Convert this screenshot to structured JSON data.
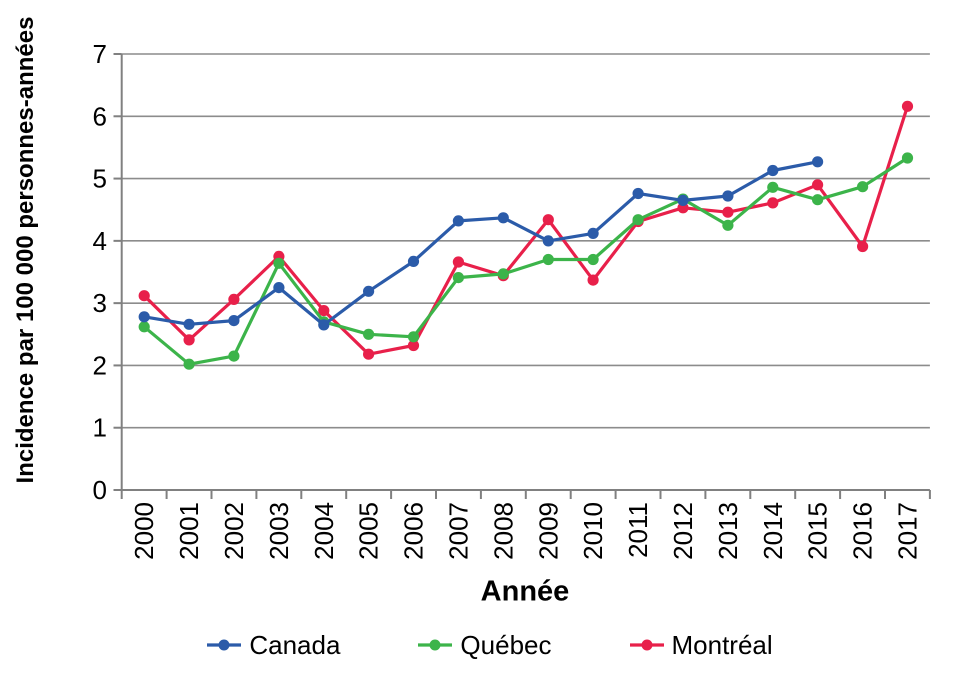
{
  "figure": {
    "background": "#ffffff"
  },
  "chart_data": {
    "type": "line",
    "title": "",
    "xlabel": "Année",
    "ylabel": "Incidence par 100 000 personnes-années",
    "x_categories": [
      "2000",
      "2001",
      "2002",
      "2003",
      "2004",
      "2005",
      "2006",
      "2007",
      "2008",
      "2009",
      "2010",
      "2011",
      "2012",
      "2013",
      "2014",
      "2015",
      "2016",
      "2017"
    ],
    "y_tick_labels": [
      "0",
      "1",
      "2",
      "3",
      "4",
      "5",
      "6",
      "7"
    ],
    "ylim": [
      0,
      7
    ],
    "grid": "horizontal",
    "legend_position": "bottom",
    "axis_color": "#808080",
    "grid_color": "#8c8c8c",
    "text_color": "#000000",
    "series": [
      {
        "name": "Canada",
        "color": "#2b5ba9",
        "values": [
          2.78,
          2.66,
          2.72,
          3.25,
          2.65,
          3.19,
          3.67,
          4.32,
          4.37,
          4.0,
          4.12,
          4.76,
          4.65,
          4.72,
          5.13,
          5.27,
          null,
          null
        ]
      },
      {
        "name": "Québec",
        "color": "#3cb44a",
        "values": [
          2.62,
          2.02,
          2.15,
          3.64,
          2.7,
          2.5,
          2.46,
          3.41,
          3.47,
          3.7,
          3.7,
          4.34,
          4.67,
          4.25,
          4.86,
          4.66,
          4.87,
          5.33
        ]
      },
      {
        "name": "Montréal",
        "color": "#e8204a",
        "values": [
          3.12,
          2.41,
          3.06,
          3.75,
          2.88,
          2.18,
          2.32,
          3.66,
          3.44,
          4.34,
          3.37,
          4.31,
          4.53,
          4.46,
          4.61,
          4.9,
          3.91,
          6.16
        ]
      }
    ]
  }
}
